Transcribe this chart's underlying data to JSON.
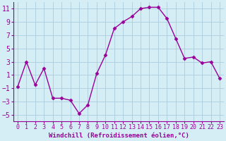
{
  "x": [
    0,
    1,
    2,
    3,
    4,
    5,
    6,
    7,
    8,
    9,
    10,
    11,
    12,
    13,
    14,
    15,
    16,
    17,
    18,
    19,
    20,
    21,
    22,
    23
  ],
  "y": [
    -0.8,
    3.0,
    -0.5,
    2.0,
    -2.5,
    -2.5,
    -2.8,
    -4.8,
    -3.5,
    1.2,
    4.0,
    8.0,
    9.0,
    9.8,
    11.0,
    11.2,
    11.2,
    9.5,
    6.5,
    3.5,
    3.7,
    2.8,
    3.0,
    0.5
  ],
  "line_color": "#990099",
  "marker": "D",
  "markersize": 2.5,
  "linewidth": 1.0,
  "xlabel": "Windchill (Refroidissement éolien,°C)",
  "ylim": [
    -6,
    12
  ],
  "xlim": [
    -0.5,
    23.5
  ],
  "yticks": [
    -5,
    -3,
    -1,
    1,
    3,
    5,
    7,
    9,
    11
  ],
  "xticks": [
    0,
    1,
    2,
    3,
    4,
    5,
    6,
    7,
    8,
    9,
    10,
    11,
    12,
    13,
    14,
    15,
    16,
    17,
    18,
    19,
    20,
    21,
    22,
    23
  ],
  "bg_color": "#d5eef5",
  "grid_color": "#aaccdd",
  "line_and_text_color": "#990099",
  "xlabel_fontsize": 6.5,
  "ytick_fontsize": 7.0,
  "xtick_fontsize": 6.0
}
